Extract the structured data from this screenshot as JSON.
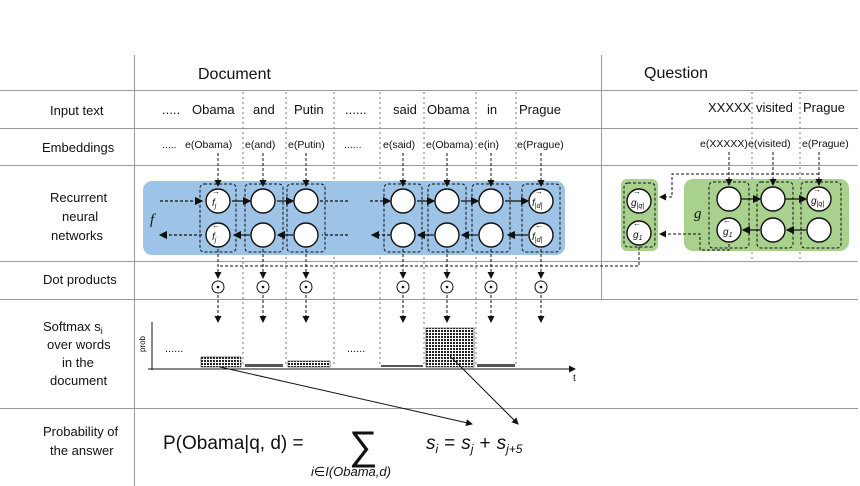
{
  "headers": {
    "document": "Document",
    "question": "Question"
  },
  "row_labels": {
    "input": "Input text",
    "embeddings": "Embeddings",
    "rnn": [
      "Recurrent",
      "neural",
      "networks"
    ],
    "dot": "Dot products",
    "softmax": [
      "Softmax s",
      "over words",
      "in the",
      "document"
    ],
    "softmax_sub": "i",
    "prob": [
      "Probability of",
      "the answer"
    ]
  },
  "doc_words": [
    ".....",
    "Obama",
    "and",
    "Putin",
    "......",
    "said",
    "Obama",
    "in",
    "Prague"
  ],
  "doc_embeddings": [
    ".....",
    "e(Obama)",
    "e(and)",
    "e(Putin)",
    "......",
    "e(said)",
    "e(Obama)",
    "e(in)",
    "e(Prague)"
  ],
  "q_words": [
    "XXXXX",
    "visited",
    "Prague"
  ],
  "q_embeddings": [
    "e(XXXXX)",
    "e(visited)",
    "e(Prague)"
  ],
  "rnn_doc": {
    "fn_label": "f",
    "fwd_first": "f",
    "fwd_first_sub": "j",
    "bwd_first": "f",
    "bwd_first_sub": "j",
    "fwd_last": "f",
    "fwd_last_sub": "|d|",
    "bwd_last": "f",
    "bwd_last_sub": "|d|"
  },
  "rnn_q": {
    "fn_label": "g",
    "fwd_last": "g",
    "fwd_last_sub": "|q|",
    "bwd_first": "g",
    "bwd_first_sub": "1",
    "sep_top": "g",
    "sep_top_sub": "|q|",
    "sep_bot": "g",
    "sep_bot_sub": "1"
  },
  "dot_symbol": "⊙",
  "softmax_axis": {
    "ylabel": "prob",
    "xlabel": "t"
  },
  "softmax_ellipses": [
    "......",
    "......"
  ],
  "formula": {
    "lhs": "P(Obama|q, d) =",
    "sum": "∑",
    "sum_index": "i∈I(Obama,d)",
    "rhs_s": "s",
    "rhs_i": "i",
    "rhs_eq": "=",
    "rhs_sj": "s",
    "rhs_j": "j",
    "rhs_plus": "+",
    "rhs_sj5": "s",
    "rhs_j5": "j+5"
  },
  "colors": {
    "doc_rnn": "#9dc3e6",
    "q_rnn": "#a9d18e",
    "grid": "#999999",
    "bar_fill": "#555555"
  }
}
